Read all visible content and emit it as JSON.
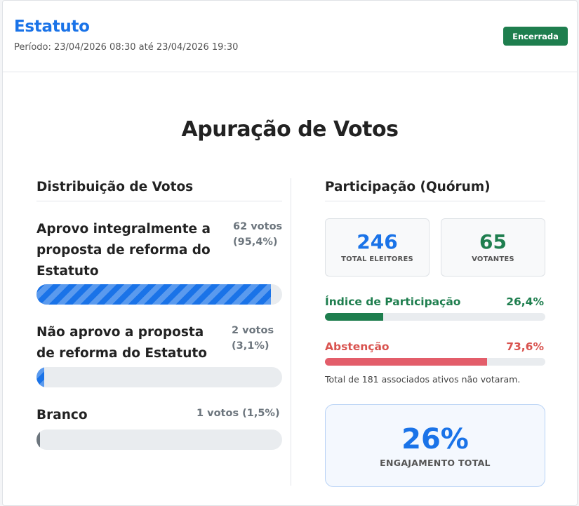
{
  "header": {
    "title": "Estatuto",
    "period": "Período: 23/04/2026 08:30 até 23/04/2026 19:30",
    "status": "Encerrada"
  },
  "main_title": "Apuração de Votos",
  "distribution": {
    "title": "Distribuição de Votos",
    "options": [
      {
        "label": "Aprovo integralmente a proposta de reforma do Estatuto",
        "count": "62 votos (95,4%)",
        "percent": 95.4,
        "color": "#1a73e8"
      },
      {
        "label": "Não aprovo a proposta de reforma do Estatuto",
        "count": "2 votos (3,1%)",
        "percent": 3.1,
        "color": "#1a73e8"
      },
      {
        "label": "Branco",
        "count": "1 votos (1,5%)",
        "percent": 1.5,
        "color": "#6c757d"
      }
    ]
  },
  "participation": {
    "title": "Participação (Quórum)",
    "total_voters": {
      "value": "246",
      "label": "TOTAL ELEITORES",
      "color": "#1a73e8"
    },
    "voters": {
      "value": "65",
      "label": "VOTANTES",
      "color": "#1e7e4e"
    },
    "participation_index": {
      "label": "Índice de Participação",
      "value": "26,4%",
      "percent": 26.4,
      "color": "#1e7e4e"
    },
    "abstention": {
      "label": "Abstenção",
      "value": "73,6%",
      "percent": 73.6,
      "color": "#d9534f",
      "bar_color": "#e35d6a"
    },
    "note": "Total de 181 associados ativos não votaram.",
    "engagement": {
      "value": "26%",
      "label": "ENGAJAMENTO TOTAL"
    }
  }
}
